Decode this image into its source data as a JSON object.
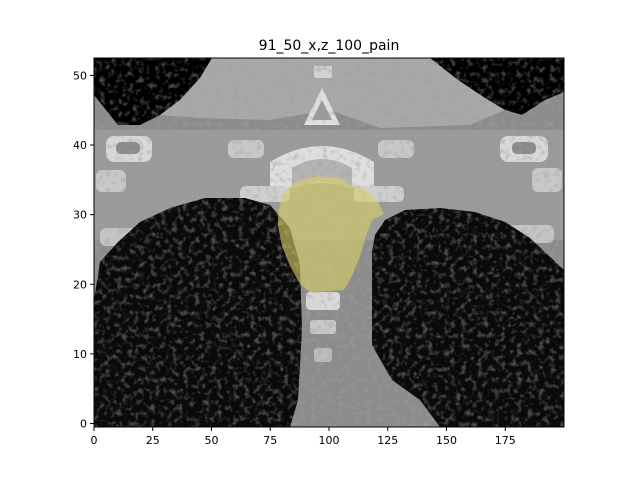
{
  "figure": {
    "title": "91_50_x,z_100_pain"
  },
  "axes": {
    "xlim": [
      0,
      200
    ],
    "ylim": [
      -0.5,
      52.5
    ],
    "xticks": [
      0,
      25,
      50,
      75,
      100,
      125,
      150,
      175
    ],
    "yticks": [
      0,
      10,
      20,
      30,
      40,
      50
    ]
  },
  "colors": {
    "overlay": "#d8d068",
    "spine": "#000000"
  }
}
